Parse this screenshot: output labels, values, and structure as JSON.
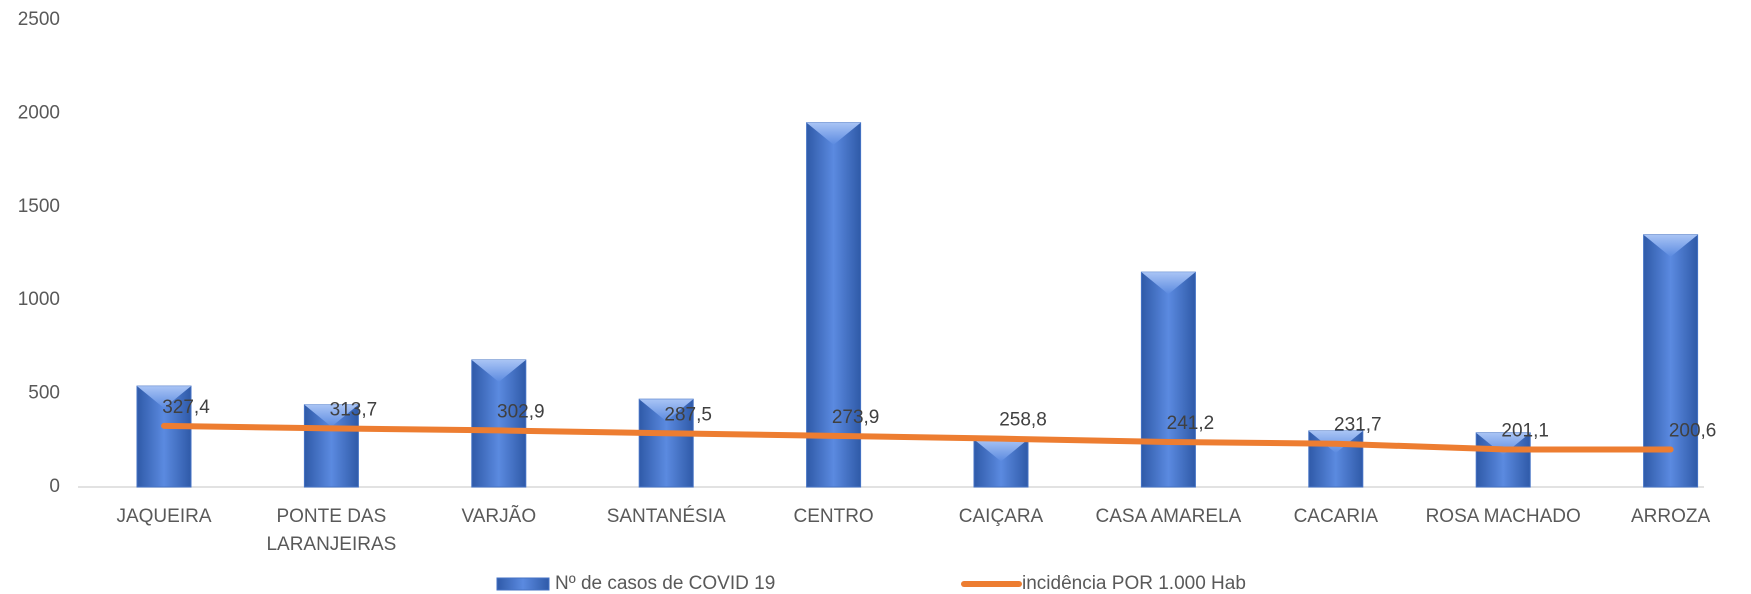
{
  "chart_data": {
    "type": "bar_line",
    "categories": [
      "JAQUEIRA",
      "PONTE DAS LARANJEIRAS",
      "VARJÃO",
      "SANTANÉSIA",
      "CENTRO",
      "CAIÇARA",
      "CASA AMARELA",
      "CACARIA",
      "ROSA MACHADO",
      "ARROZA"
    ],
    "series": [
      {
        "name": "Nº de casos de COVID 19",
        "type": "bar",
        "color": "#4472c4",
        "values": [
          540,
          440,
          680,
          470,
          1950,
          255,
          1150,
          300,
          290,
          1350
        ]
      },
      {
        "name": "incidência POR 1.000 Hab",
        "type": "line",
        "color": "#ed7d31",
        "values": [
          327.4,
          313.7,
          302.9,
          287.5,
          273.9,
          258.8,
          241.2,
          231.7,
          201.1,
          200.6
        ],
        "value_labels": [
          "327,4",
          "313,7",
          "302,9",
          "287,5",
          "273,9",
          "258,8",
          "241,2",
          "231,7",
          "201,1",
          "200,6"
        ]
      }
    ],
    "ylim": [
      0,
      2500
    ],
    "yticks": [
      0,
      500,
      1000,
      1500,
      2000,
      2500
    ],
    "legend": "bottom"
  }
}
